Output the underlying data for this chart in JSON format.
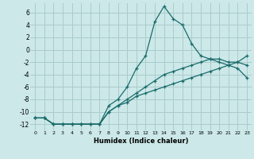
{
  "xlabel": "Humidex (Indice chaleur)",
  "bg_color": "#cce8e8",
  "grid_color": "#aacccc",
  "line_color": "#1a6b6b",
  "xlim": [
    -0.5,
    23.5
  ],
  "ylim": [
    -13,
    7.5
  ],
  "xticks": [
    0,
    1,
    2,
    3,
    4,
    5,
    6,
    7,
    8,
    9,
    10,
    11,
    12,
    13,
    14,
    15,
    16,
    17,
    18,
    19,
    20,
    21,
    22,
    23
  ],
  "yticks": [
    -12,
    -10,
    -8,
    -6,
    -4,
    -2,
    0,
    2,
    4,
    6
  ],
  "line1_x": [
    0,
    1,
    2,
    3,
    4,
    5,
    6,
    7,
    8,
    9,
    10,
    11,
    12,
    13,
    14,
    15,
    16,
    17,
    18,
    19,
    20,
    21,
    22,
    23
  ],
  "line1_y": [
    -11,
    -11,
    -12,
    -12,
    -12,
    -12,
    -12,
    -12,
    -9,
    -8,
    -6,
    -3,
    -1,
    4.5,
    7,
    5,
    4,
    1,
    -1,
    -1.5,
    -2,
    -2.5,
    -3,
    -4.5
  ],
  "line2_x": [
    0,
    1,
    2,
    3,
    4,
    5,
    6,
    7,
    8,
    9,
    10,
    11,
    12,
    13,
    14,
    15,
    16,
    17,
    18,
    19,
    20,
    21,
    22,
    23
  ],
  "line2_y": [
    -11,
    -11,
    -12,
    -12,
    -12,
    -12,
    -12,
    -12,
    -10,
    -9,
    -8,
    -7,
    -6,
    -5,
    -4,
    -3.5,
    -3,
    -2.5,
    -2,
    -1.5,
    -1.5,
    -2,
    -2,
    -2.5
  ],
  "line3_x": [
    0,
    1,
    2,
    3,
    4,
    5,
    6,
    7,
    8,
    9,
    10,
    11,
    12,
    13,
    14,
    15,
    16,
    17,
    18,
    19,
    20,
    21,
    22,
    23
  ],
  "line3_y": [
    -11,
    -11,
    -12,
    -12,
    -12,
    -12,
    -12,
    -12,
    -10,
    -9,
    -8.5,
    -7.5,
    -7,
    -6.5,
    -6,
    -5.5,
    -5,
    -4.5,
    -4,
    -3.5,
    -3,
    -2.5,
    -2,
    -1
  ]
}
